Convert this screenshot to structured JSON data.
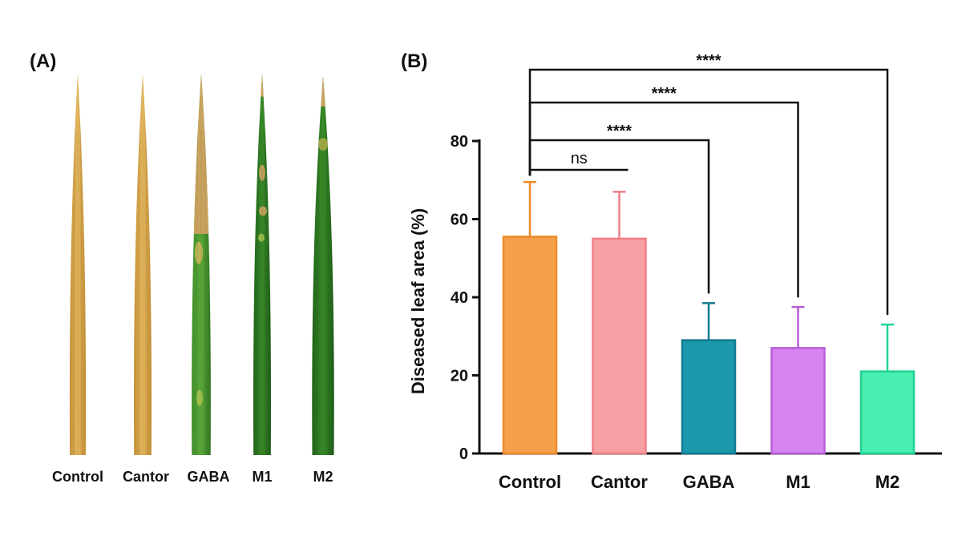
{
  "figure": {
    "panel_a_label": "(A)",
    "panel_b_label": "(B)"
  },
  "photo": {
    "leaves": [
      {
        "label": "Control",
        "condition": "fully diseased"
      },
      {
        "label": "Cantor",
        "condition": "fully diseased"
      },
      {
        "label": "GABA",
        "condition": "partly diseased"
      },
      {
        "label": "M1",
        "condition": "mostly green"
      },
      {
        "label": "M2",
        "condition": "mostly green"
      }
    ],
    "colors": {
      "diseased": "#d4a64a",
      "healthy": "#2f7d22",
      "lesion": "#c9a25e"
    }
  },
  "chart_data": {
    "type": "bar",
    "ylabel": "Diseased leaf area (%)",
    "ylim": [
      0,
      80
    ],
    "yticks": [
      0,
      20,
      40,
      60,
      80
    ],
    "categories": [
      "Control",
      "Cantor",
      "GABA",
      "M1",
      "M2"
    ],
    "values": [
      55.5,
      55,
      29,
      27,
      21
    ],
    "errors": [
      14,
      12,
      9.5,
      10.5,
      12
    ],
    "colors": [
      {
        "fill": "#f5a04a",
        "stroke": "#ef8a28"
      },
      {
        "fill": "#f7a0a4",
        "stroke": "#ee7f86"
      },
      {
        "fill": "#1c98ad",
        "stroke": "#137b8f"
      },
      {
        "fill": "#d884f0",
        "stroke": "#b75ed8"
      },
      {
        "fill": "#47f0b0",
        "stroke": "#1fd190"
      }
    ],
    "comparisons": [
      {
        "from": "Control",
        "to": "Cantor",
        "label": "ns"
      },
      {
        "from": "Control",
        "to": "GABA",
        "label": "****"
      },
      {
        "from": "Control",
        "to": "M1",
        "label": "****"
      },
      {
        "from": "Control",
        "to": "M2",
        "label": "****"
      }
    ]
  }
}
